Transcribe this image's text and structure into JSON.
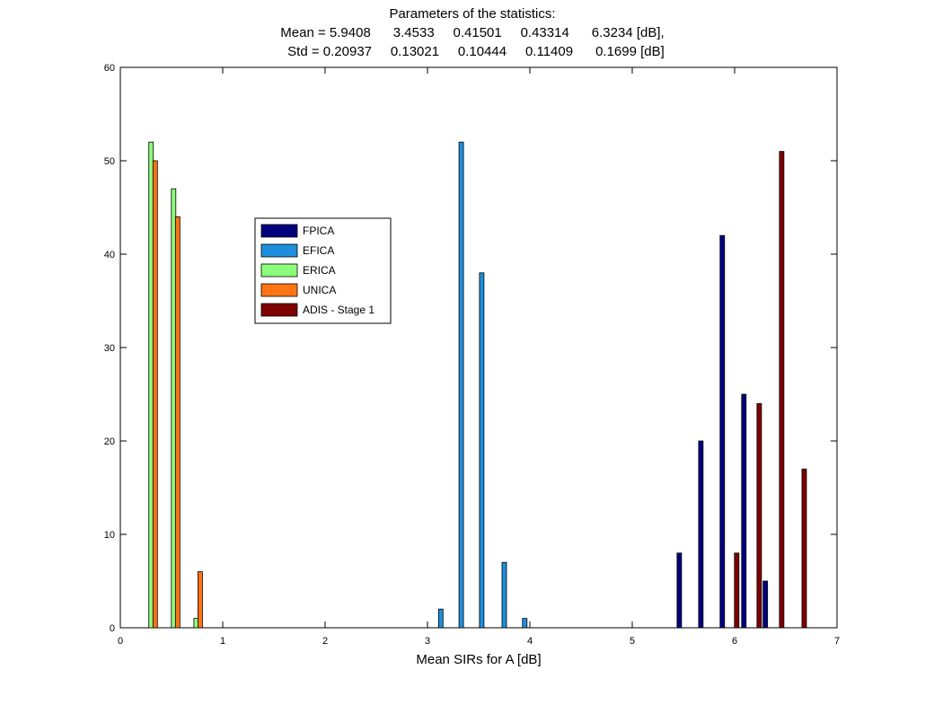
{
  "chart_data": {
    "type": "bar",
    "title_lines": [
      "Parameters of the statistics:",
      "Mean = 5.9408      3.4533     0.41501     0.43314      6.3234 [dB],",
      "Std = 0.20937     0.13021     0.10444     0.11409      0.1699 [dB]"
    ],
    "xlabel": "Mean SIRs for A [dB]",
    "ylabel": "",
    "xlim": [
      0,
      7
    ],
    "ylim": [
      0,
      60
    ],
    "xticks": [
      0,
      1,
      2,
      3,
      4,
      5,
      6,
      7
    ],
    "yticks": [
      0,
      10,
      20,
      30,
      40,
      50,
      60
    ],
    "grid": false,
    "legend_position": "upper-left (inside axes)",
    "series": [
      {
        "name": "FPICA",
        "color": "#00007f",
        "x": [
          5.46,
          5.67,
          5.88,
          6.09,
          6.3
        ],
        "values": [
          8,
          20,
          42,
          25,
          5
        ]
      },
      {
        "name": "EFICA",
        "color": "#1e8fdc",
        "x": [
          3.13,
          3.33,
          3.53,
          3.75,
          3.95
        ],
        "values": [
          2,
          52,
          38,
          7,
          1
        ]
      },
      {
        "name": "ERICA",
        "color": "#8cff7a",
        "x": [
          0.3,
          0.52,
          0.74
        ],
        "values": [
          52,
          47,
          1
        ]
      },
      {
        "name": "UNICA",
        "color": "#ff7415",
        "x": [
          0.34,
          0.56,
          0.78
        ],
        "values": [
          50,
          44,
          6
        ]
      },
      {
        "name": "ADIS - Stage 1",
        "color": "#7f0000",
        "x": [
          6.02,
          6.24,
          6.46,
          6.68
        ],
        "values": [
          8,
          24,
          51,
          17
        ]
      }
    ]
  }
}
